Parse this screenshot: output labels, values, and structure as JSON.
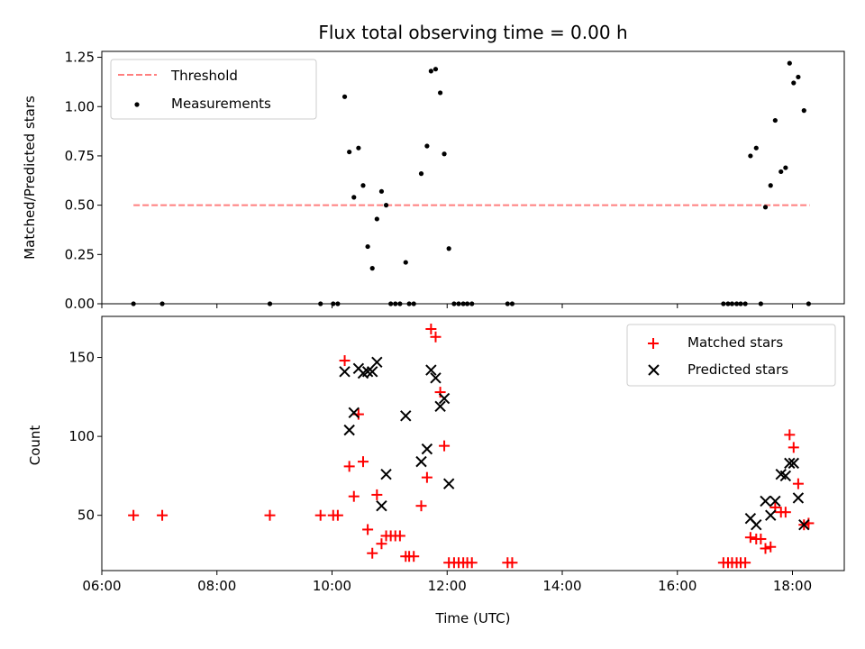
{
  "chart_data": [
    {
      "type": "scatter",
      "title": "Flux total observing time = 0.00 h",
      "xlabel": "",
      "ylabel": "Matched/Predicted stars",
      "xlim": [
        6.0,
        18.9
      ],
      "ylim": [
        0,
        1.28
      ],
      "yticks": [
        0,
        0.25,
        0.5,
        0.75,
        1.0,
        1.25
      ],
      "ytick_labels": [
        "0.00",
        "0.25",
        "0.50",
        "0.75",
        "1.00",
        "1.25"
      ],
      "legend_position": "top-left",
      "series": [
        {
          "name": "Threshold",
          "kind": "hline",
          "color": "#ff7f7f",
          "style": "dashed",
          "y": 0.5,
          "x_range": [
            6.55,
            18.3
          ]
        },
        {
          "name": "Measurements",
          "kind": "scatter",
          "color": "#000000",
          "marker": "dot",
          "points": [
            [
              6.55,
              0
            ],
            [
              7.05,
              0
            ],
            [
              8.92,
              0
            ],
            [
              9.8,
              0
            ],
            [
              10.02,
              0
            ],
            [
              10.1,
              0
            ],
            [
              10.22,
              1.05
            ],
            [
              10.3,
              0.77
            ],
            [
              10.38,
              0.54
            ],
            [
              10.46,
              0.79
            ],
            [
              10.54,
              0.6
            ],
            [
              10.62,
              0.29
            ],
            [
              10.7,
              0.18
            ],
            [
              10.78,
              0.43
            ],
            [
              10.86,
              0.57
            ],
            [
              10.94,
              0.5
            ],
            [
              11.02,
              0
            ],
            [
              11.1,
              0
            ],
            [
              11.18,
              0
            ],
            [
              11.28,
              0.21
            ],
            [
              11.34,
              0
            ],
            [
              11.42,
              0
            ],
            [
              11.55,
              0.66
            ],
            [
              11.65,
              0.8
            ],
            [
              11.72,
              1.18
            ],
            [
              11.8,
              1.19
            ],
            [
              11.88,
              1.07
            ],
            [
              11.95,
              0.76
            ],
            [
              12.03,
              0.28
            ],
            [
              12.12,
              0
            ],
            [
              12.2,
              0
            ],
            [
              12.28,
              0
            ],
            [
              12.35,
              0
            ],
            [
              12.43,
              0
            ],
            [
              13.05,
              0
            ],
            [
              13.13,
              0
            ],
            [
              16.8,
              0
            ],
            [
              16.88,
              0
            ],
            [
              16.95,
              0
            ],
            [
              17.03,
              0
            ],
            [
              17.1,
              0
            ],
            [
              17.18,
              0
            ],
            [
              17.27,
              0.75
            ],
            [
              17.37,
              0.79
            ],
            [
              17.45,
              0
            ],
            [
              17.53,
              0.49
            ],
            [
              17.62,
              0.6
            ],
            [
              17.7,
              0.93
            ],
            [
              17.8,
              0.67
            ],
            [
              17.88,
              0.69
            ],
            [
              17.95,
              1.22
            ],
            [
              18.02,
              1.12
            ],
            [
              18.1,
              1.15
            ],
            [
              18.2,
              0.98
            ],
            [
              18.28,
              0
            ]
          ]
        }
      ]
    },
    {
      "type": "scatter",
      "title": "",
      "xlabel": "Time (UTC)",
      "ylabel": "Count",
      "xlim": [
        6.0,
        18.9
      ],
      "ylim": [
        15,
        176
      ],
      "yticks": [
        50,
        100,
        150
      ],
      "ytick_labels": [
        "50",
        "100",
        "150"
      ],
      "xticks": [
        6,
        8,
        10,
        12,
        14,
        16,
        18
      ],
      "xtick_labels": [
        "06:00",
        "08:00",
        "10:00",
        "12:00",
        "14:00",
        "16:00",
        "18:00"
      ],
      "legend_position": "top-right",
      "series": [
        {
          "name": "Matched stars",
          "kind": "scatter",
          "color": "#ff0000",
          "marker": "plus",
          "points": [
            [
              6.55,
              50
            ],
            [
              7.05,
              50
            ],
            [
              8.92,
              50
            ],
            [
              9.8,
              50
            ],
            [
              10.02,
              50
            ],
            [
              10.1,
              50
            ],
            [
              10.22,
              148
            ],
            [
              10.3,
              81
            ],
            [
              10.38,
              62
            ],
            [
              10.46,
              114
            ],
            [
              10.54,
              84
            ],
            [
              10.62,
              41
            ],
            [
              10.7,
              26
            ],
            [
              10.78,
              63
            ],
            [
              10.86,
              32
            ],
            [
              10.94,
              37
            ],
            [
              11.02,
              37
            ],
            [
              11.1,
              37
            ],
            [
              11.18,
              37
            ],
            [
              11.28,
              24
            ],
            [
              11.34,
              24
            ],
            [
              11.42,
              24
            ],
            [
              11.55,
              56
            ],
            [
              11.65,
              74
            ],
            [
              11.72,
              168
            ],
            [
              11.8,
              163
            ],
            [
              11.88,
              128
            ],
            [
              11.95,
              94
            ],
            [
              12.03,
              20
            ],
            [
              12.12,
              20
            ],
            [
              12.2,
              20
            ],
            [
              12.28,
              20
            ],
            [
              12.35,
              20
            ],
            [
              12.43,
              20
            ],
            [
              13.05,
              20
            ],
            [
              13.13,
              20
            ],
            [
              16.8,
              20
            ],
            [
              16.88,
              20
            ],
            [
              16.95,
              20
            ],
            [
              17.03,
              20
            ],
            [
              17.1,
              20
            ],
            [
              17.18,
              20
            ],
            [
              17.27,
              36
            ],
            [
              17.37,
              35
            ],
            [
              17.45,
              35
            ],
            [
              17.53,
              29
            ],
            [
              17.62,
              30
            ],
            [
              17.7,
              55
            ],
            [
              17.8,
              52
            ],
            [
              17.88,
              52
            ],
            [
              17.95,
              101
            ],
            [
              18.02,
              93
            ],
            [
              18.1,
              70
            ],
            [
              18.2,
              44
            ],
            [
              18.28,
              45
            ]
          ]
        },
        {
          "name": "Predicted stars",
          "kind": "scatter",
          "color": "#000000",
          "marker": "x",
          "points": [
            [
              10.22,
              141
            ],
            [
              10.3,
              104
            ],
            [
              10.38,
              115
            ],
            [
              10.46,
              143
            ],
            [
              10.54,
              140
            ],
            [
              10.62,
              141
            ],
            [
              10.7,
              141
            ],
            [
              10.78,
              147
            ],
            [
              10.86,
              56
            ],
            [
              10.94,
              76
            ],
            [
              11.28,
              113
            ],
            [
              11.55,
              84
            ],
            [
              11.65,
              92
            ],
            [
              11.72,
              142
            ],
            [
              11.8,
              137
            ],
            [
              11.88,
              119
            ],
            [
              11.95,
              124
            ],
            [
              12.03,
              70
            ],
            [
              17.27,
              48
            ],
            [
              17.37,
              44
            ],
            [
              17.53,
              59
            ],
            [
              17.62,
              50
            ],
            [
              17.7,
              59
            ],
            [
              17.8,
              76
            ],
            [
              17.88,
              75
            ],
            [
              17.95,
              83
            ],
            [
              18.02,
              83
            ],
            [
              18.1,
              61
            ],
            [
              18.2,
              44
            ]
          ]
        }
      ]
    }
  ]
}
